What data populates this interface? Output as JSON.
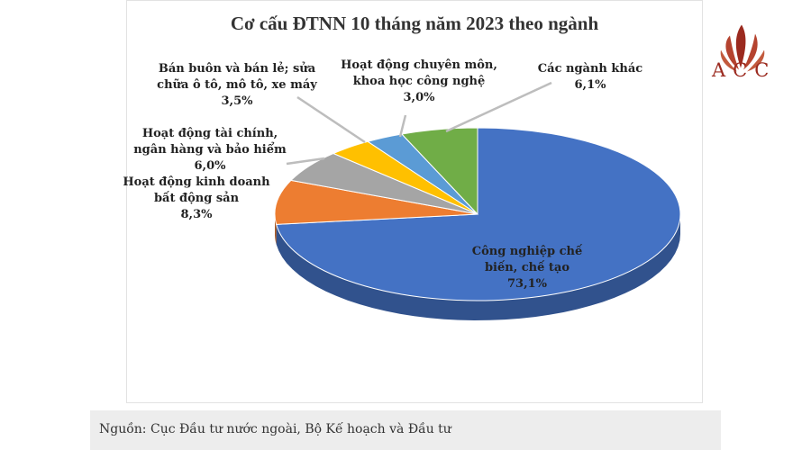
{
  "chart_data": {
    "type": "pie",
    "title": "Cơ cấu ĐTNN 10 tháng năm 2023 theo ngành",
    "slices": [
      {
        "label": [
          "Công nghiệp chế",
          "biến, chế tạo"
        ],
        "value": 73.1,
        "value_label": "73,1%",
        "color": "#4472c4"
      },
      {
        "label": [
          "Hoạt động kinh  doanh",
          "bất động sản"
        ],
        "value": 8.3,
        "value_label": "8,3%",
        "color": "#ed7d31"
      },
      {
        "label": [
          "Hoạt động tài chính,",
          "ngân hàng và bảo hiểm"
        ],
        "value": 6.0,
        "value_label": "6,0%",
        "color": "#a5a5a5"
      },
      {
        "label": [
          "Bán buôn và bán lẻ; sửa",
          "chữa ô tô, mô tô, xe máy"
        ],
        "value": 3.5,
        "value_label": "3,5%",
        "color": "#ffc000"
      },
      {
        "label": [
          "Hoạt động chuyên môn,",
          "khoa học công nghệ"
        ],
        "value": 3.0,
        "value_label": "3,0%",
        "color": "#5b9bd5"
      },
      {
        "label": [
          "Các ngành khác"
        ],
        "value": 6.1,
        "value_label": "6,1%",
        "color": "#70ad47"
      }
    ],
    "style": "3d"
  },
  "logo": {
    "text": "ACC",
    "color": "#9b2a1f"
  },
  "source": "Nguồn: Cục Đầu tư nước ngoài, Bộ Kế hoạch và Đầu tư"
}
